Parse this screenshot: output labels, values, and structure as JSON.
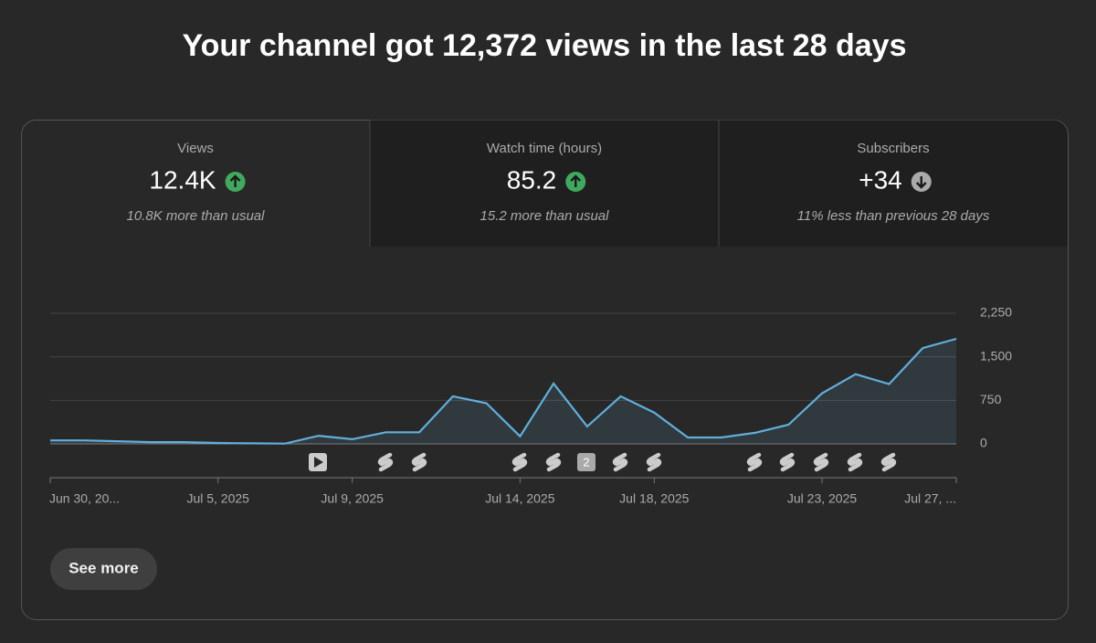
{
  "header": {
    "title": "Your channel got 12,372 views in the last 28 days"
  },
  "metrics": [
    {
      "label": "Views",
      "value": "12.4K",
      "trend": "up",
      "note": "10.8K more than usual"
    },
    {
      "label": "Watch time (hours)",
      "value": "85.2",
      "trend": "up",
      "note": "15.2 more than usual"
    },
    {
      "label": "Subscribers",
      "value": "+34",
      "trend": "down",
      "note": "11% less than previous 28 days"
    }
  ],
  "chart_badge": "2",
  "button": "See more",
  "chart_data": {
    "type": "line",
    "categories": [
      "Jun 30, 20...",
      null,
      null,
      null,
      null,
      "Jul 5, 2025",
      null,
      null,
      null,
      "Jul 9, 2025",
      null,
      null,
      null,
      null,
      "Jul 14, 2025",
      null,
      null,
      null,
      "Jul 18, 2025",
      null,
      null,
      null,
      null,
      "Jul 23, 2025",
      null,
      null,
      null,
      "Jul 27, ..."
    ],
    "series": [
      {
        "name": "Views",
        "color": "#62aedb",
        "values": [
          60,
          60,
          45,
          30,
          30,
          15,
          10,
          5,
          140,
          80,
          200,
          200,
          820,
          700,
          130,
          1040,
          300,
          820,
          540,
          110,
          110,
          190,
          330,
          870,
          1200,
          1030,
          1650,
          1810
        ]
      }
    ],
    "ylim": [
      0,
      2250
    ],
    "yticks": [
      0,
      {
        "value": 750,
        "label": "750"
      },
      {
        "value": 1500,
        "label": "1,500"
      },
      {
        "value": 2250,
        "label": "2,250"
      }
    ],
    "grid": true
  }
}
